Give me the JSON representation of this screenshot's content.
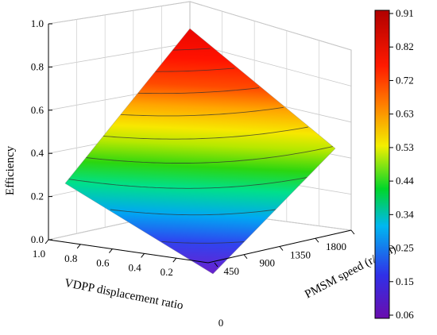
{
  "chart_data": {
    "type": "surface3d",
    "title": "",
    "zlabel": "Efficiency",
    "xlabel": "VDPP displacement ratio",
    "ylabel": "PMSM speed (r/min)",
    "z_ticks": [
      "0.0",
      "0.2",
      "0.4",
      "0.6",
      "0.8",
      "1.0"
    ],
    "x_ticks": [
      "1.0",
      "0.8",
      "0.6",
      "0.4",
      "0.2"
    ],
    "x_tick_values": [
      1.0,
      0.8,
      0.6,
      0.4,
      0.2
    ],
    "y_ticks": [
      "0",
      "450",
      "900",
      "1350",
      "1800"
    ],
    "y_tick_values": [
      0,
      450,
      900,
      1350,
      1800
    ],
    "zlim": [
      0,
      1.0
    ],
    "xlim": [
      0,
      1.0
    ],
    "ylim": [
      0,
      1800
    ],
    "colorbar": {
      "ticks": [
        "0.91",
        "0.82",
        "0.72",
        "0.63",
        "0.53",
        "0.44",
        "0.34",
        "0.25",
        "0.15",
        "0.06"
      ],
      "min": 0.06,
      "max": 0.91,
      "colormap": [
        "#6a0dad",
        "#3030e8",
        "#00b7f0",
        "#00d62a",
        "#f3ef00",
        "#ff7a00",
        "#ff1a00",
        "#b00000"
      ]
    },
    "surface_corners": {
      "x1.0_speed0": 0.28,
      "x0.0_speed0": 0.0,
      "x0.0_speed1800": 0.39,
      "x1.0_speed1800": 1.0
    },
    "contour_levels": [
      0.1,
      0.2,
      0.3,
      0.4,
      0.5,
      0.6,
      0.7,
      0.8,
      0.9
    ],
    "grid": true
  }
}
